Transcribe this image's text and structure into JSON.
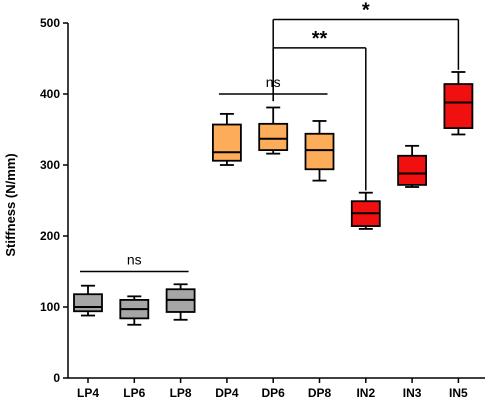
{
  "chart_data": {
    "type": "box",
    "ylabel": "Stiffness (N/mm)",
    "xlabel": "",
    "title": "",
    "ylim": [
      0,
      500
    ],
    "yticks": [
      0,
      100,
      200,
      300,
      400,
      500
    ],
    "grid": false,
    "categories": [
      "LP4",
      "LP6",
      "LP8",
      "DP4",
      "DP6",
      "DP8",
      "IN2",
      "IN3",
      "IN5"
    ],
    "boxes": [
      {
        "category": "LP4",
        "min": 88,
        "q1": 94,
        "median": 100,
        "q3": 118,
        "max": 130,
        "color": "#a6a6a6"
      },
      {
        "category": "LP6",
        "min": 75,
        "q1": 84,
        "median": 97,
        "q3": 110,
        "max": 115,
        "color": "#a6a6a6"
      },
      {
        "category": "LP8",
        "min": 82,
        "q1": 93,
        "median": 110,
        "q3": 125,
        "max": 132,
        "color": "#a6a6a6"
      },
      {
        "category": "DP4",
        "min": 300,
        "q1": 306,
        "median": 318,
        "q3": 357,
        "max": 372,
        "color": "#fdad5a"
      },
      {
        "category": "DP6",
        "min": 316,
        "q1": 321,
        "median": 337,
        "q3": 358,
        "max": 381,
        "color": "#fdad5a"
      },
      {
        "category": "DP8",
        "min": 278,
        "q1": 294,
        "median": 321,
        "q3": 344,
        "max": 362,
        "color": "#fdad5a"
      },
      {
        "category": "IN2",
        "min": 210,
        "q1": 214,
        "median": 232,
        "q3": 249,
        "max": 261,
        "color": "#f01010"
      },
      {
        "category": "IN3",
        "min": 269,
        "q1": 272,
        "median": 288,
        "q3": 313,
        "max": 327,
        "color": "#f01010"
      },
      {
        "category": "IN5",
        "min": 343,
        "q1": 352,
        "median": 388,
        "q3": 414,
        "max": 431,
        "color": "#f01010"
      }
    ],
    "annotations": [
      {
        "type": "span",
        "from": "LP4",
        "to": "LP8",
        "y": 150,
        "label": "ns"
      },
      {
        "type": "span",
        "from": "DP4",
        "to": "DP8",
        "y": 400,
        "label": "ns"
      },
      {
        "type": "bracket",
        "from": "DP6",
        "to": "IN2",
        "y": 465,
        "label": "**"
      },
      {
        "type": "bracket",
        "from": "DP6",
        "to": "IN5",
        "y": 505,
        "label": "*"
      }
    ]
  }
}
